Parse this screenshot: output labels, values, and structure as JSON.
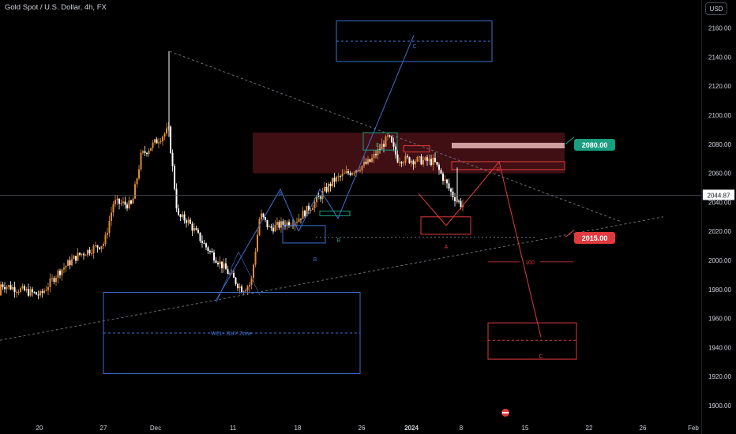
{
  "header": {
    "title": "Gold Spot / U.S. Dollar, 4h, FX",
    "currency_button": "USD"
  },
  "badges": {
    "cur_price": "2044.87",
    "target_high": "2080.00",
    "target_low": "2015.00"
  },
  "annotations": {
    "wave_c_top": "C",
    "wave_c_mid": "C",
    "wave_a1": "A",
    "wave_a2": "A",
    "wave_b1": "B",
    "wave_b2": "B",
    "wave_b_red": "B",
    "wave_a_red": "A",
    "wave_c_red": "C",
    "wcl_zone": "WCL- BUY Zone",
    "box_100": "100"
  },
  "chart_data": {
    "type": "candlestick",
    "title": "Gold Spot / U.S. Dollar, 4h, FX",
    "interval": "4h",
    "ylim": [
      1900,
      2175
    ],
    "y_ticks": [
      1900,
      1920,
      1940,
      1960,
      1980,
      2000,
      2020,
      2040,
      2060,
      2080,
      2100,
      2120,
      2140,
      2160
    ],
    "x_ticks": [
      "20",
      "27",
      "Dec",
      "11",
      "18",
      "26",
      "2024",
      "8",
      "15",
      "22",
      "26",
      "Feb"
    ],
    "current_price": 2044.87,
    "key_levels": [
      2080.0,
      2015.0
    ],
    "close_path": [
      {
        "date": "2023-11-20",
        "close": 1976
      },
      {
        "date": "2023-11-22",
        "close": 1992
      },
      {
        "date": "2023-11-24",
        "close": 2003
      },
      {
        "date": "2023-11-27",
        "close": 2012
      },
      {
        "date": "2023-11-28",
        "close": 2040
      },
      {
        "date": "2023-11-30",
        "close": 2038
      },
      {
        "date": "2023-12-01",
        "close": 2072
      },
      {
        "date": "2023-12-04",
        "close": 2090
      },
      {
        "date": "2023-12-05",
        "close": 2030
      },
      {
        "date": "2023-12-06",
        "close": 2028
      },
      {
        "date": "2023-12-08",
        "close": 2010
      },
      {
        "date": "2023-12-11",
        "close": 1988
      },
      {
        "date": "2023-12-12",
        "close": 1980
      },
      {
        "date": "2023-12-13",
        "close": 1984
      },
      {
        "date": "2023-12-14",
        "close": 2032
      },
      {
        "date": "2023-12-15",
        "close": 2022
      },
      {
        "date": "2023-12-18",
        "close": 2028
      },
      {
        "date": "2023-12-20",
        "close": 2040
      },
      {
        "date": "2023-12-22",
        "close": 2055
      },
      {
        "date": "2023-12-26",
        "close": 2068
      },
      {
        "date": "2023-12-28",
        "close": 2085
      },
      {
        "date": "2023-12-29",
        "close": 2070
      },
      {
        "date": "2024-01-02",
        "close": 2068
      },
      {
        "date": "2024-01-04",
        "close": 2045
      },
      {
        "date": "2024-01-05",
        "close": 2038
      },
      {
        "date": "2024-01-08",
        "close": 2045
      }
    ]
  },
  "colors": {
    "bull": "#e08a3a",
    "bear": "#ffffff",
    "blue": "#3d6fd1",
    "red": "#e03a3e",
    "teal": "#199e7f"
  }
}
